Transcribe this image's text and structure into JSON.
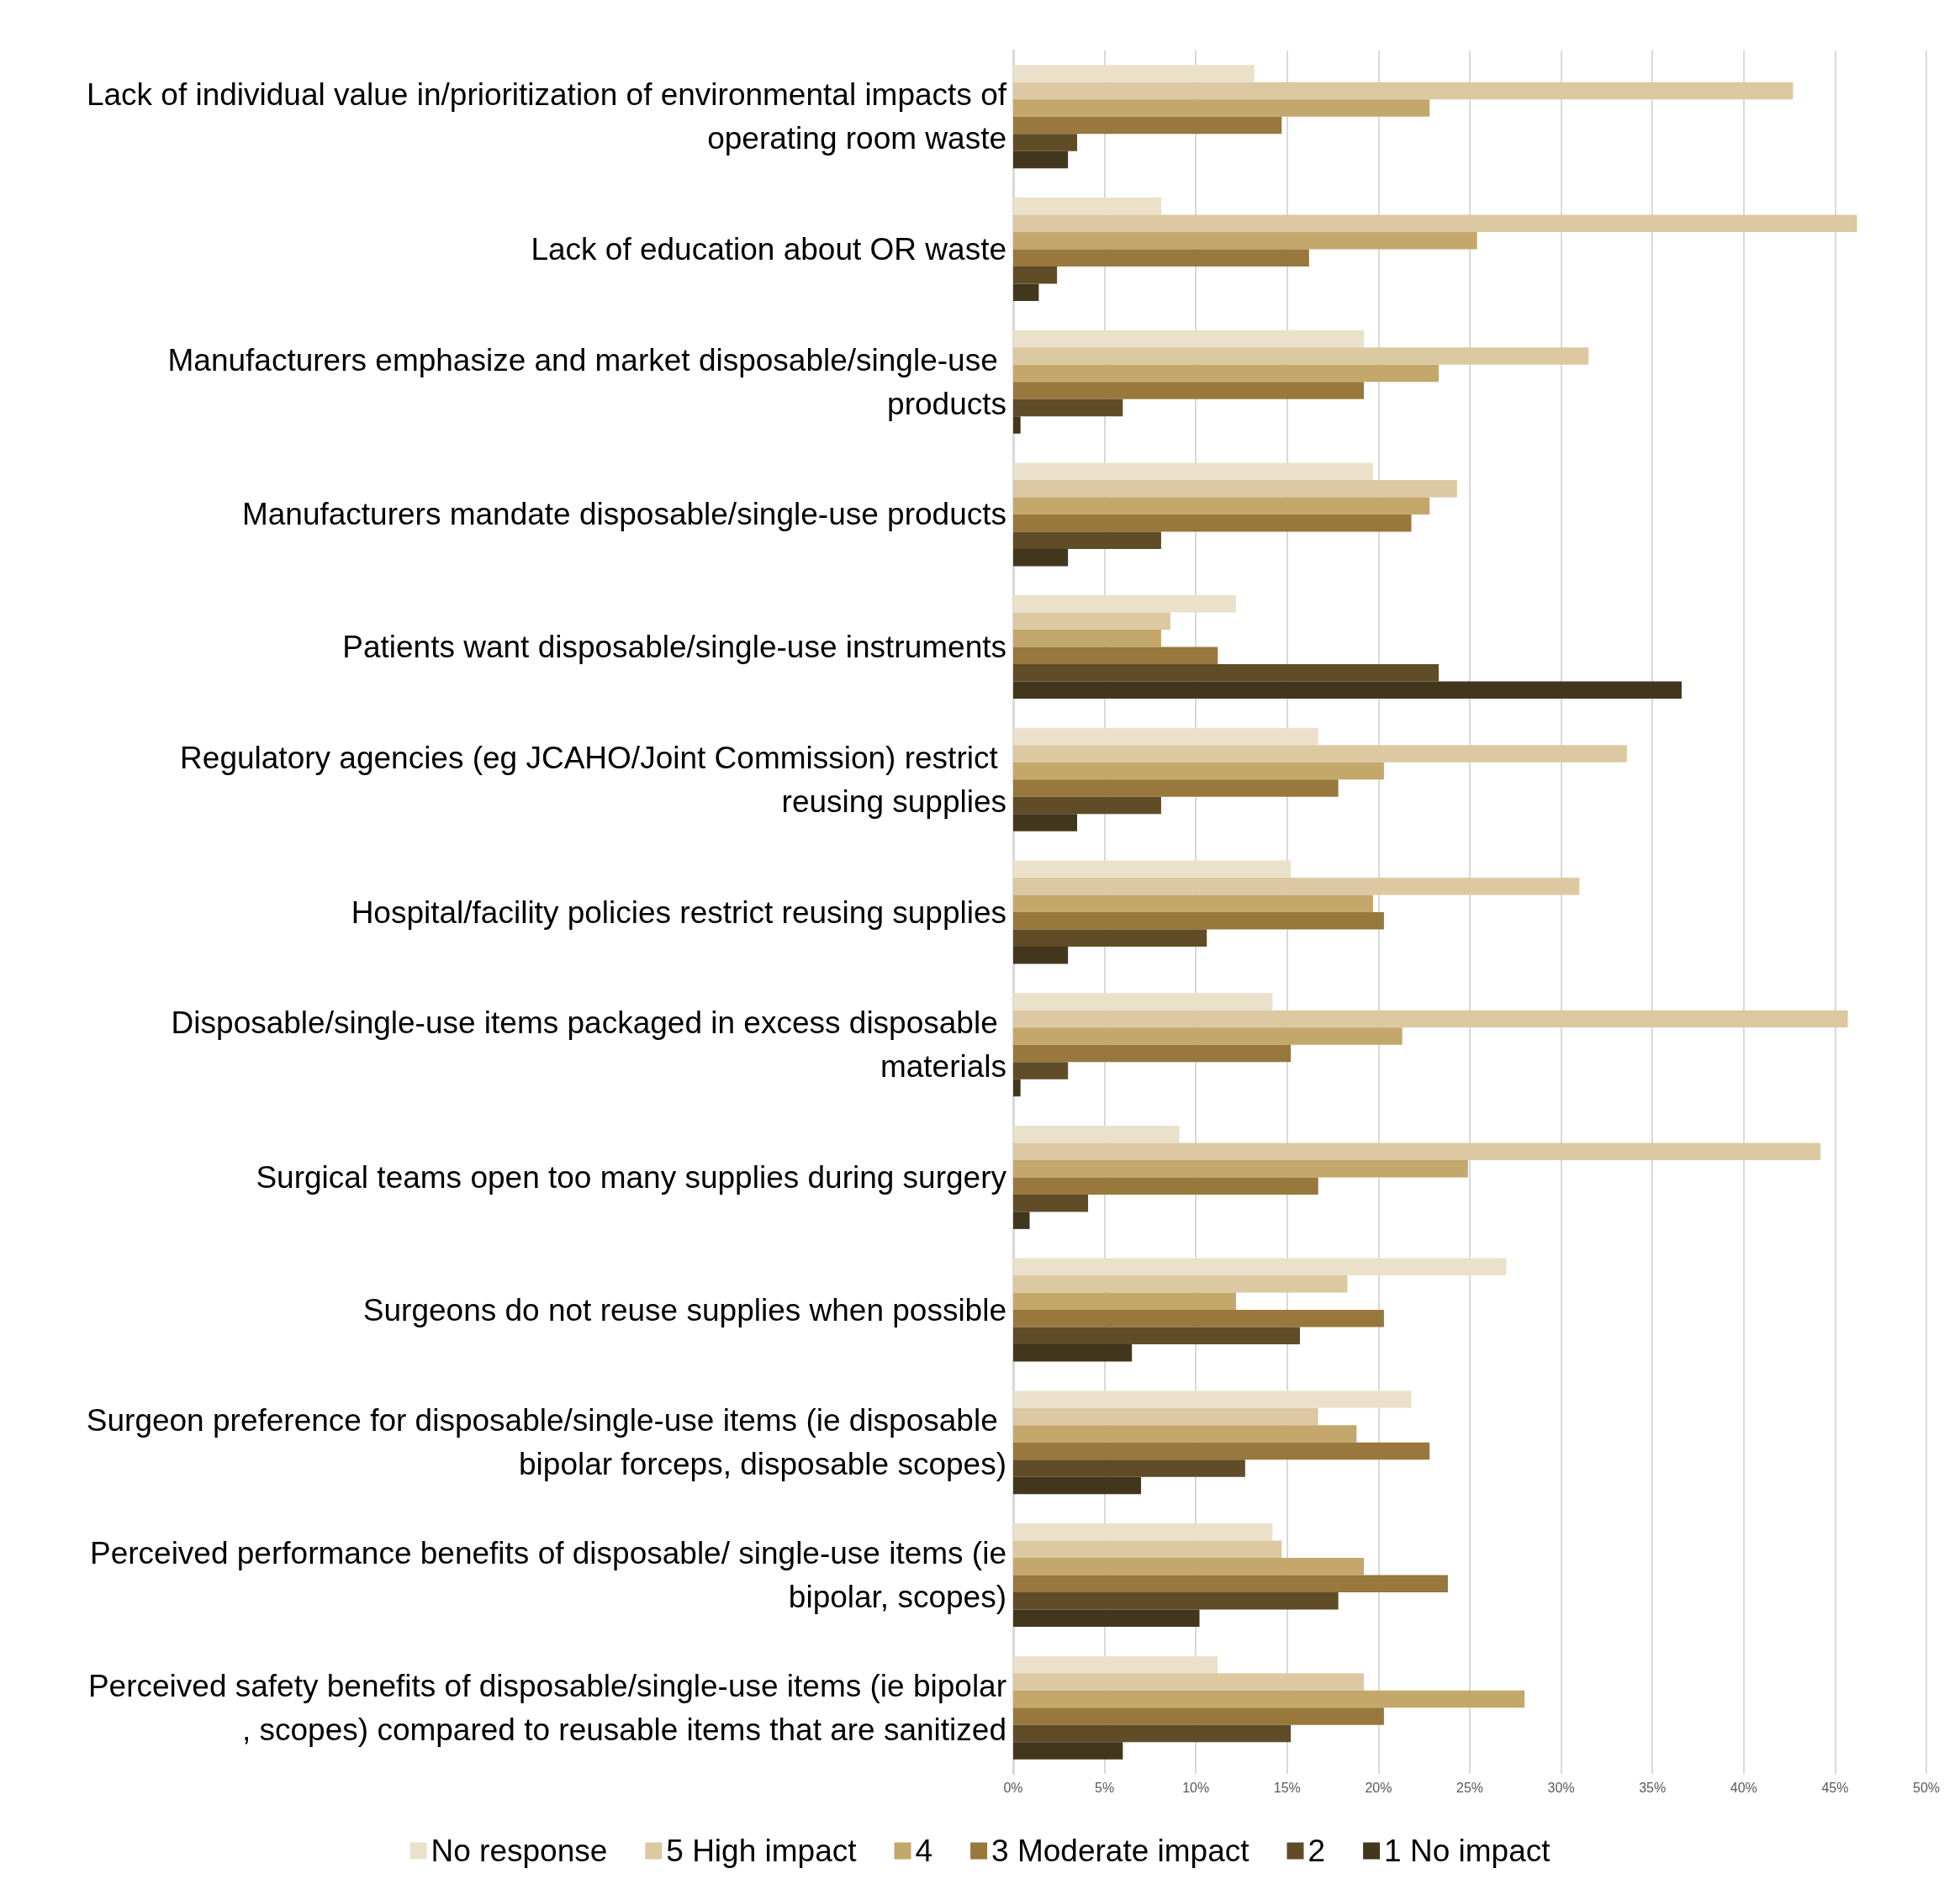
{
  "chart_data": {
    "type": "bar",
    "orientation": "horizontal",
    "categories": [
      "Lack of individual value in/prioritization of environmental impacts of operating room waste",
      "Lack of education about OR waste",
      "Manufacturers emphasize and market disposable/single-use products",
      "Manufacturers mandate disposable/single-use products",
      "Patients want disposable/single-use instruments",
      "Regulatory agencies (eg JCAHO/Joint Commission) restrict reusing supplies",
      "Hospital/facility policies restrict reusing supplies",
      "Disposable/single-use items packaged in excess disposable materials",
      "Surgical teams open too many supplies during surgery",
      "Surgeons do not reuse supplies when possible",
      "Surgeon preference for disposable/single-use items (ie disposable bipolar forceps, disposable scopes)",
      "Perceived performance benefits of disposable/ single-use items (ie bipolar, scopes)",
      "Perceived safety benefits of disposable/single-use items (ie bipolar, scopes) compared to reusable items that are sanitized"
    ],
    "series": [
      {
        "name": "No response",
        "color": "#ebe1cb",
        "values": [
          13.2,
          8.1,
          19.2,
          19.7,
          12.2,
          16.7,
          15.2,
          14.2,
          9.1,
          27.0,
          21.8,
          14.2,
          11.2
        ]
      },
      {
        "name": "5 High impact",
        "color": "#dcc9a1",
        "values": [
          42.7,
          46.2,
          31.5,
          24.3,
          8.6,
          33.6,
          31.0,
          45.7,
          44.2,
          18.3,
          16.7,
          14.7,
          19.2
        ]
      },
      {
        "name": "4",
        "color": "#c4a76a",
        "values": [
          22.8,
          25.4,
          23.3,
          22.8,
          8.1,
          20.3,
          19.7,
          21.3,
          24.9,
          12.2,
          18.8,
          19.2,
          28.0
        ]
      },
      {
        "name": "3 Moderate impact",
        "color": "#98783c",
        "values": [
          14.7,
          16.2,
          19.2,
          21.8,
          11.2,
          17.8,
          20.3,
          15.2,
          16.7,
          20.3,
          22.8,
          23.8,
          20.3
        ]
      },
      {
        "name": "2",
        "color": "#604c27",
        "values": [
          3.5,
          2.4,
          6.0,
          8.1,
          23.3,
          8.1,
          10.6,
          3.0,
          4.1,
          15.7,
          12.7,
          17.8,
          15.2
        ]
      },
      {
        "name": "1 No impact",
        "color": "#42361d",
        "values": [
          3.0,
          1.4,
          0.4,
          3.0,
          36.6,
          3.5,
          3.0,
          0.4,
          0.9,
          6.5,
          7.0,
          10.2,
          6.0
        ]
      }
    ],
    "xlim": [
      0,
      50
    ],
    "xticks": [
      {
        "value": 0,
        "label": "0%"
      },
      {
        "value": 5,
        "label": "5%"
      },
      {
        "value": 10,
        "label": "10%"
      },
      {
        "value": 15,
        "label": "15%"
      },
      {
        "value": 20,
        "label": "20%"
      },
      {
        "value": 25,
        "label": "25%"
      },
      {
        "value": 30,
        "label": "30%"
      },
      {
        "value": 35,
        "label": "35%"
      },
      {
        "value": 40,
        "label": "40%"
      },
      {
        "value": 45,
        "label": "45%"
      },
      {
        "value": 50,
        "label": "50%"
      }
    ],
    "grid": "x",
    "legend": "bottom"
  }
}
